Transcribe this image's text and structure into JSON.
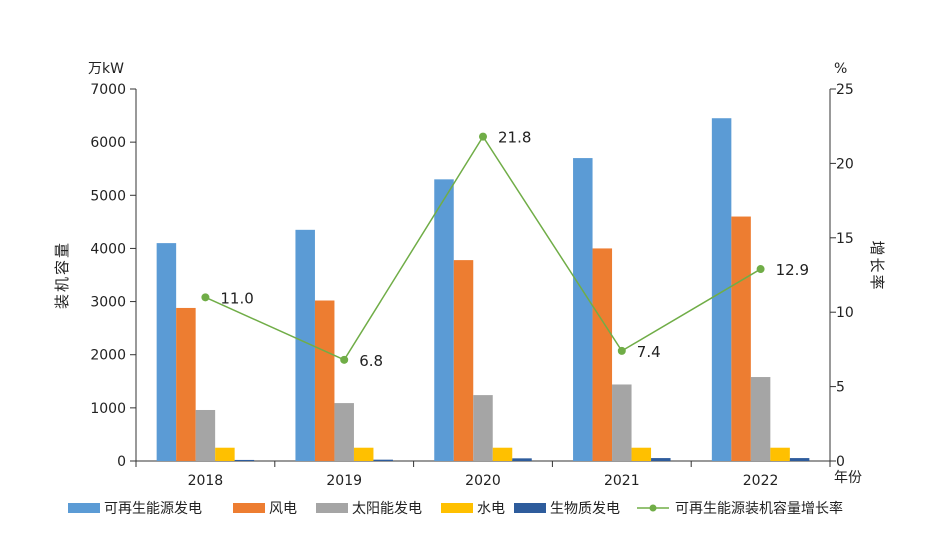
{
  "chart_data": {
    "type": "bar",
    "categories": [
      "2018",
      "2019",
      "2020",
      "2021",
      "2022"
    ],
    "series": [
      {
        "name": "可再生能源发电",
        "color": "#5b9bd5",
        "values": [
          4100,
          4350,
          5300,
          5700,
          6450
        ]
      },
      {
        "name": "风电",
        "color": "#ed7d31",
        "values": [
          2880,
          3020,
          3780,
          4000,
          4600
        ]
      },
      {
        "name": "太阳能发电",
        "color": "#a5a5a5",
        "values": [
          960,
          1090,
          1240,
          1440,
          1580
        ]
      },
      {
        "name": "水电",
        "color": "#ffc000",
        "values": [
          250,
          250,
          250,
          250,
          250
        ]
      },
      {
        "name": "生物质发电",
        "color": "#2e5c9c",
        "values": [
          20,
          25,
          50,
          55,
          55
        ]
      }
    ],
    "line": {
      "name": "可再生能源装机容量增长率",
      "color": "#70ad47",
      "values": [
        11.0,
        6.8,
        21.8,
        7.4,
        12.9
      ],
      "labels": [
        "11.0",
        "6.8",
        "21.8",
        "7.4",
        "12.9"
      ]
    },
    "y_left": {
      "unit": "万kW",
      "label": "装机容量",
      "range": [
        0,
        7000
      ],
      "ticks": [
        0,
        1000,
        2000,
        3000,
        4000,
        5000,
        6000,
        7000
      ],
      "tick_labels": [
        "0",
        "1000",
        "2000",
        "3000",
        "4000",
        "5000",
        "6000",
        "7000"
      ]
    },
    "y_right": {
      "unit": "%",
      "label": "增长率",
      "range": [
        0,
        25
      ],
      "ticks": [
        0,
        5,
        10,
        15,
        20,
        25
      ],
      "tick_labels": [
        "0",
        "5",
        "10",
        "15",
        "20",
        "25"
      ]
    },
    "x_unit": "年份",
    "legend_position": "bottom"
  }
}
